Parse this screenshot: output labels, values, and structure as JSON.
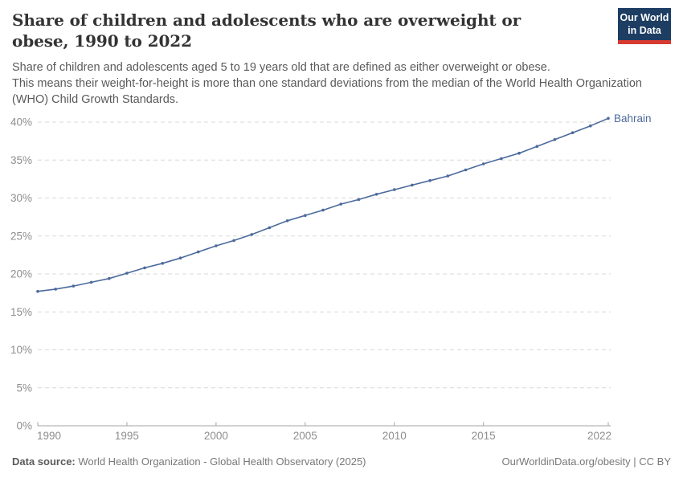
{
  "header": {
    "title": "Share of children and adolescents who are overweight or obese, 1990 to 2022",
    "subtitle_line1": "Share of children and adolescents aged 5 to 19 years old that are defined as either overweight or obese.",
    "subtitle_line2": "This means their weight-for-height is more than one standard deviations from the median of the World Health Organization (WHO) Child Growth Standards.",
    "logo": {
      "line1": "Our World",
      "line2": "in Data",
      "bg_color": "#1d3d63",
      "accent_color": "#d73a31"
    }
  },
  "chart_data": {
    "type": "line",
    "title": "Share of children and adolescents who are overweight or obese, 1990 to 2022",
    "xlabel": "",
    "ylabel": "",
    "unit": "%",
    "xlim": [
      1990,
      2022
    ],
    "ylim": [
      0,
      40
    ],
    "x_ticks": [
      1990,
      1995,
      2000,
      2005,
      2010,
      2015,
      2022
    ],
    "y_ticks": [
      0,
      5,
      10,
      15,
      20,
      25,
      30,
      35,
      40
    ],
    "grid": "horizontal-dashed",
    "legend_position": "end-of-line",
    "series": [
      {
        "name": "Bahrain",
        "color": "#4c6a9c",
        "x": [
          1990,
          1991,
          1992,
          1993,
          1994,
          1995,
          1996,
          1997,
          1998,
          1999,
          2000,
          2001,
          2002,
          2003,
          2004,
          2005,
          2006,
          2007,
          2008,
          2009,
          2010,
          2011,
          2012,
          2013,
          2014,
          2015,
          2016,
          2017,
          2018,
          2019,
          2020,
          2021,
          2022
        ],
        "values": [
          17.7,
          18.0,
          18.4,
          18.9,
          19.4,
          20.1,
          20.8,
          21.4,
          22.1,
          22.9,
          23.7,
          24.4,
          25.2,
          26.1,
          27.0,
          27.7,
          28.4,
          29.2,
          29.8,
          30.5,
          31.1,
          31.7,
          32.3,
          32.9,
          33.7,
          34.5,
          35.2,
          35.9,
          36.8,
          37.7,
          38.6,
          39.5,
          40.5
        ]
      }
    ],
    "end_label": "Bahrain",
    "colors": {
      "gridline": "#d8d8d8",
      "axis": "#a3a3a3",
      "tick_label": "#8e8e8e"
    }
  },
  "footer": {
    "source_label": "Data source:",
    "source_text": " World Health Organization - Global Health Observatory (2025)",
    "right_text": "OurWorldinData.org/obesity | CC BY"
  }
}
